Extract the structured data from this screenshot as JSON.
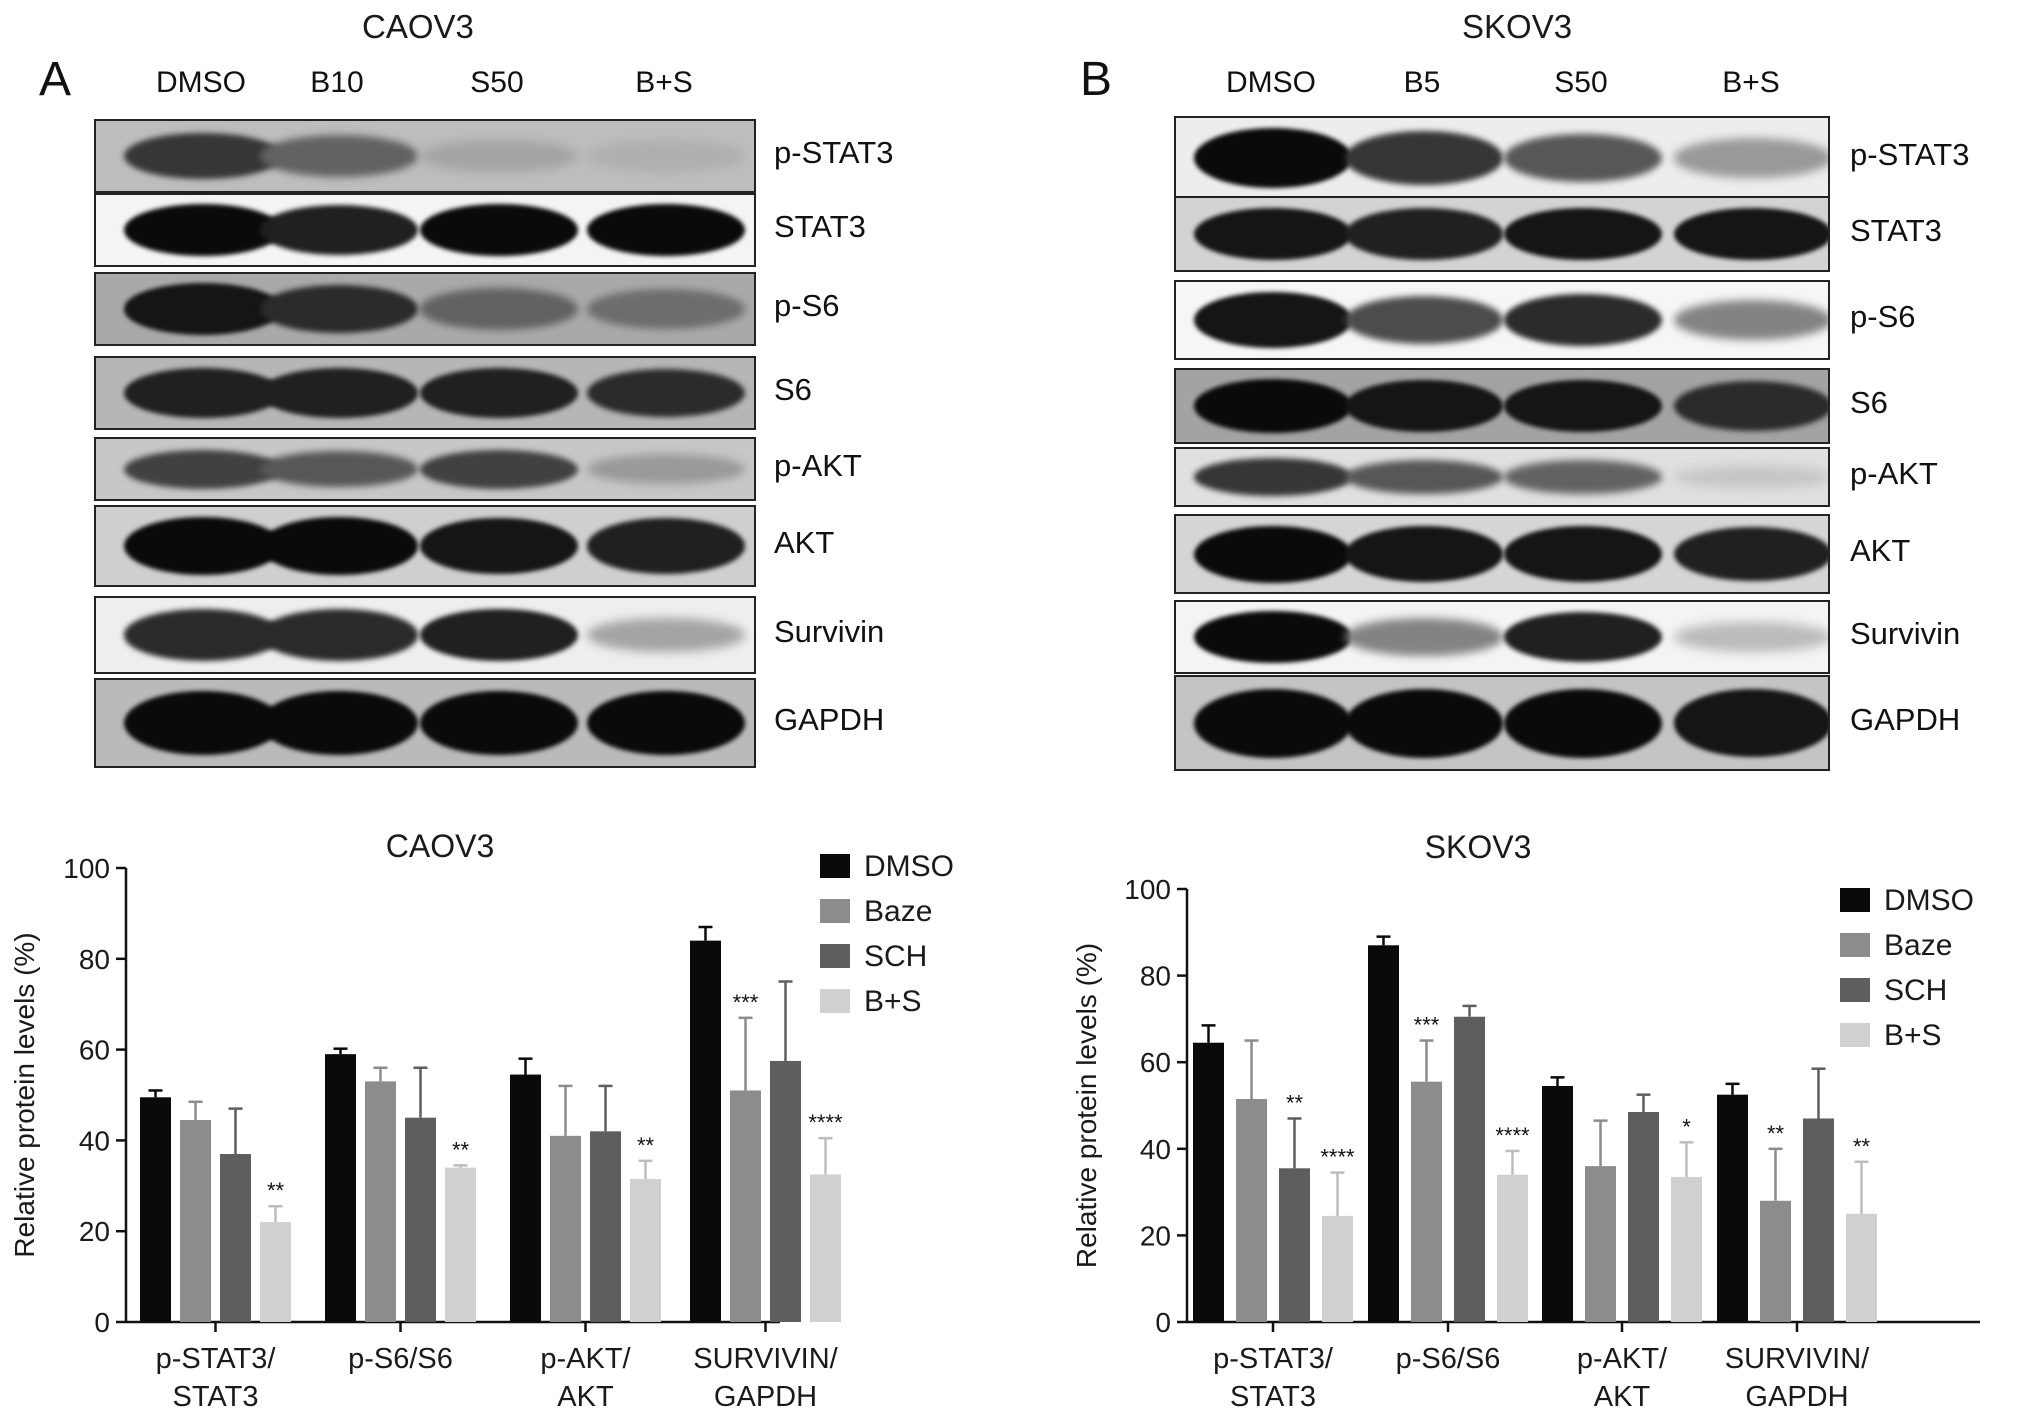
{
  "panels": [
    {
      "letter": "A",
      "cell_line": "CAOV3",
      "lanes": [
        "DMSO",
        "B10",
        "S50",
        "B+S"
      ],
      "blots": [
        {
          "protein": "p-STAT3",
          "bg": "#bdbdbd",
          "intensity": [
            0.8,
            0.6,
            0.3,
            0.25
          ]
        },
        {
          "protein": "STAT3",
          "bg": "#f4f4f4",
          "intensity": [
            1.0,
            0.9,
            1.0,
            1.0
          ]
        },
        {
          "protein": "p-S6",
          "bg": "#a9a9a9",
          "intensity": [
            0.95,
            0.85,
            0.6,
            0.55
          ]
        },
        {
          "protein": "S6",
          "bg": "#b6b6b6",
          "intensity": [
            0.9,
            0.9,
            0.9,
            0.85
          ]
        },
        {
          "protein": "p-AKT",
          "bg": "#c7c7c7",
          "intensity": [
            0.75,
            0.65,
            0.75,
            0.35
          ]
        },
        {
          "protein": "AKT",
          "bg": "#cfcfcf",
          "intensity": [
            1.0,
            1.0,
            0.95,
            0.9
          ]
        },
        {
          "protein": "Survivin",
          "bg": "#eeeeee",
          "intensity": [
            0.85,
            0.85,
            0.9,
            0.3
          ]
        },
        {
          "protein": "GAPDH",
          "bg": "#bababa",
          "intensity": [
            1.0,
            1.0,
            1.0,
            1.0
          ]
        }
      ]
    },
    {
      "letter": "B",
      "cell_line": "SKOV3",
      "lanes": [
        "DMSO",
        "B5",
        "S50",
        "B+S"
      ],
      "blots": [
        {
          "protein": "p-STAT3",
          "bg": "#ededed",
          "intensity": [
            1.0,
            0.8,
            0.65,
            0.35
          ]
        },
        {
          "protein": "STAT3",
          "bg": "#d3d3d3",
          "intensity": [
            0.95,
            0.9,
            0.95,
            0.95
          ]
        },
        {
          "protein": "p-S6",
          "bg": "#f6f6f6",
          "intensity": [
            0.95,
            0.7,
            0.85,
            0.45
          ]
        },
        {
          "protein": "S6",
          "bg": "#a3a3a3",
          "intensity": [
            1.0,
            0.95,
            0.95,
            0.85
          ]
        },
        {
          "protein": "p-AKT",
          "bg": "#e0e0e0",
          "intensity": [
            0.8,
            0.65,
            0.6,
            0.15
          ]
        },
        {
          "protein": "AKT",
          "bg": "#d5d5d5",
          "intensity": [
            1.0,
            0.95,
            0.95,
            0.9
          ]
        },
        {
          "protein": "Survivin",
          "bg": "#f4f4f4",
          "intensity": [
            1.0,
            0.45,
            0.9,
            0.2
          ]
        },
        {
          "protein": "GAPDH",
          "bg": "#c4c4c4",
          "intensity": [
            1.0,
            1.0,
            1.0,
            0.95
          ]
        }
      ]
    }
  ],
  "chart_data": [
    {
      "type": "bar",
      "title": "CAOV3",
      "ylabel": "Relative protein levels (%)",
      "ylim": [
        0,
        100
      ],
      "yticks": [
        0,
        20,
        40,
        60,
        80,
        100
      ],
      "categories": [
        {
          "line1": "p-STAT3/",
          "line2": "STAT3"
        },
        {
          "line1": "p-S6/S6",
          "line2": ""
        },
        {
          "line1": "p-AKT/",
          "line2": "AKT"
        },
        {
          "line1": "SURVIVIN/",
          "line2": "GAPDH"
        }
      ],
      "legend_position": "top-right",
      "series": [
        {
          "name": "DMSO",
          "color": "#0a0a0a",
          "values": [
            49.5,
            59,
            54.5,
            84
          ],
          "errors": [
            1.5,
            1.2,
            3.5,
            3
          ],
          "sig": [
            "",
            "",
            "",
            ""
          ]
        },
        {
          "name": "Baze",
          "color": "#8c8c8c",
          "values": [
            44.5,
            53,
            41,
            51
          ],
          "errors": [
            4,
            3,
            11,
            16
          ],
          "sig": [
            "",
            "",
            "",
            "***"
          ]
        },
        {
          "name": "SCH",
          "color": "#5e5e5e",
          "values": [
            37,
            45,
            42,
            57.5
          ],
          "errors": [
            10,
            11,
            10,
            17.5
          ],
          "sig": [
            "",
            "",
            "",
            ""
          ]
        },
        {
          "name": "B+S",
          "color": "#d0d0d0",
          "values": [
            22,
            34,
            31.5,
            32.5
          ],
          "errors": [
            3.5,
            0.5,
            4,
            8
          ],
          "sig": [
            "**",
            "**",
            "**",
            "****"
          ]
        }
      ]
    },
    {
      "type": "bar",
      "title": "SKOV3",
      "ylabel": "Relative protein levels (%)",
      "ylim": [
        0,
        100
      ],
      "yticks": [
        0,
        20,
        40,
        60,
        80,
        100
      ],
      "categories": [
        {
          "line1": "p-STAT3/",
          "line2": "STAT3"
        },
        {
          "line1": "p-S6/S6",
          "line2": ""
        },
        {
          "line1": "p-AKT/",
          "line2": "AKT"
        },
        {
          "line1": "SURVIVIN/",
          "line2": "GAPDH"
        }
      ],
      "legend_position": "top-right",
      "series": [
        {
          "name": "DMSO",
          "color": "#0a0a0a",
          "values": [
            64.5,
            87,
            54.5,
            52.5
          ],
          "errors": [
            4,
            2,
            2,
            2.5
          ],
          "sig": [
            "",
            "",
            "",
            ""
          ]
        },
        {
          "name": "Baze",
          "color": "#8c8c8c",
          "values": [
            51.5,
            55.5,
            36,
            28
          ],
          "errors": [
            13.5,
            9.5,
            10.5,
            12
          ],
          "sig": [
            "",
            "***",
            "",
            "**"
          ]
        },
        {
          "name": "SCH",
          "color": "#5e5e5e",
          "values": [
            35.5,
            70.5,
            48.5,
            47
          ],
          "errors": [
            11.5,
            2.5,
            4,
            11.5
          ],
          "sig": [
            "**",
            "",
            "",
            ""
          ]
        },
        {
          "name": "B+S",
          "color": "#d0d0d0",
          "values": [
            24.5,
            34,
            33.5,
            25
          ],
          "errors": [
            10,
            5.5,
            8,
            12
          ],
          "sig": [
            "****",
            "****",
            "*",
            "**"
          ]
        }
      ]
    }
  ]
}
